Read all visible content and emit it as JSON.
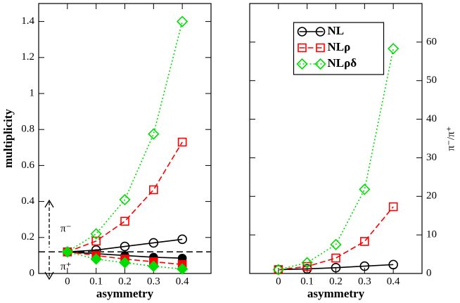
{
  "chart_data": [
    {
      "type": "line",
      "xlabel": "asymmetry",
      "ylabel": "multiplicity",
      "x": [
        0,
        0.1,
        0.2,
        0.3,
        0.4
      ],
      "xlim": [
        -0.1,
        0.5
      ],
      "xticks": [
        0,
        0.1,
        0.2,
        0.3,
        0.4
      ],
      "ylim": [
        0,
        1.5
      ],
      "yticks": [
        0,
        0.2,
        0.4,
        0.6,
        0.8,
        1,
        1.2,
        1.4
      ],
      "yaxis_side": "left",
      "hline": 0.12,
      "annotations": [
        "π⁻",
        "π⁺"
      ],
      "series": [
        {
          "color": "#000000",
          "marker": "circle",
          "filled": false,
          "dash": "solid",
          "values": [
            0.12,
            0.13,
            0.15,
            0.17,
            0.19
          ]
        },
        {
          "color": "#ff0000",
          "marker": "square",
          "filled": false,
          "dash": "dashed",
          "values": [
            0.12,
            0.18,
            0.29,
            0.465,
            0.73
          ]
        },
        {
          "color": "#00dd00",
          "marker": "diamond",
          "filled": false,
          "dash": "dotted",
          "values": [
            0.12,
            0.22,
            0.41,
            0.775,
            1.4
          ]
        },
        {
          "color": "#000000",
          "marker": "circle",
          "filled": true,
          "dash": "solid",
          "values": [
            0.12,
            0.11,
            0.1,
            0.09,
            0.085
          ]
        },
        {
          "color": "#ff0000",
          "marker": "square",
          "filled": true,
          "dash": "dashed",
          "values": [
            0.12,
            0.1,
            0.08,
            0.065,
            0.05
          ]
        },
        {
          "color": "#00dd00",
          "marker": "diamond",
          "filled": true,
          "dash": "dotted",
          "values": [
            0.12,
            0.08,
            0.06,
            0.04,
            0.025
          ]
        }
      ]
    },
    {
      "type": "line",
      "xlabel": "asymmetry",
      "ylabel": "π⁻/π⁺",
      "x": [
        0,
        0.1,
        0.2,
        0.3,
        0.4
      ],
      "xlim": [
        -0.1,
        0.5
      ],
      "xticks": [
        0,
        0.1,
        0.2,
        0.3,
        0.4
      ],
      "ylim": [
        0,
        70
      ],
      "yticks": [
        0,
        10,
        20,
        30,
        40,
        50,
        60
      ],
      "yaxis_side": "right",
      "legend": "upper center",
      "series": [
        {
          "name": "NL",
          "color": "#000000",
          "marker": "circle",
          "filled": false,
          "dash": "solid",
          "values": [
            1,
            1.2,
            1.5,
            1.9,
            2.3
          ]
        },
        {
          "name": "NLρ",
          "color": "#ff0000",
          "marker": "square",
          "filled": false,
          "dash": "dashed",
          "values": [
            1,
            1.8,
            4.0,
            8.3,
            17.3
          ]
        },
        {
          "name": "NLρδ",
          "color": "#00dd00",
          "marker": "diamond",
          "filled": false,
          "dash": "dotted",
          "values": [
            1,
            2.8,
            7.5,
            21.8,
            58.3
          ]
        }
      ]
    }
  ]
}
